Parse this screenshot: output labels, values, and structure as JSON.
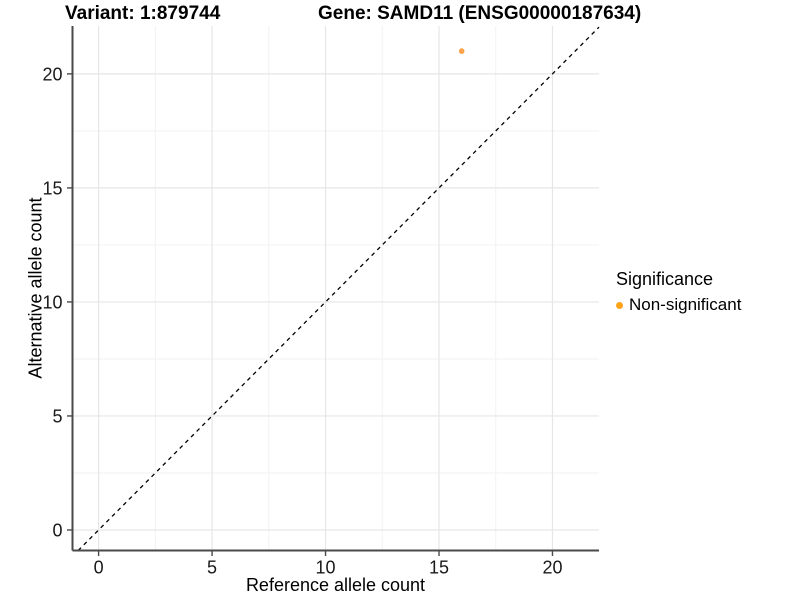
{
  "chart_data": {
    "type": "scatter",
    "title_left": "Variant: 1:879744",
    "title_right": "Gene: SAMD11 (ENSG00000187634)",
    "xlabel": "Reference allele count",
    "ylabel": "Alternative allele count",
    "xlim": [
      -1.15,
      22.05
    ],
    "ylim": [
      -0.9,
      22.1
    ],
    "xticks": [
      0,
      5,
      10,
      15,
      20
    ],
    "yticks": [
      0,
      5,
      10,
      15,
      20
    ],
    "xminor": [
      2.5,
      7.5,
      12.5,
      17.5
    ],
    "yminor": [
      2.5,
      7.5,
      12.5,
      17.5
    ],
    "grid": true,
    "legend_position": "right",
    "identity_line": {
      "type": "y=x",
      "style": "dashed",
      "color": "#000000"
    },
    "points": [
      {
        "x": 16,
        "y": 21,
        "series": "Non-significant"
      }
    ],
    "legend": {
      "title": "Significance",
      "items": [
        {
          "label": "Non-significant",
          "color": "#FFA319",
          "marker": "circle"
        }
      ]
    },
    "colors": {
      "point": "#F9A24B",
      "grid_major": "#E6E6E6",
      "grid_minor": "#F2F2F2",
      "axis_line": "#4a4a4a",
      "tick_label": "#1a1a1a"
    }
  }
}
